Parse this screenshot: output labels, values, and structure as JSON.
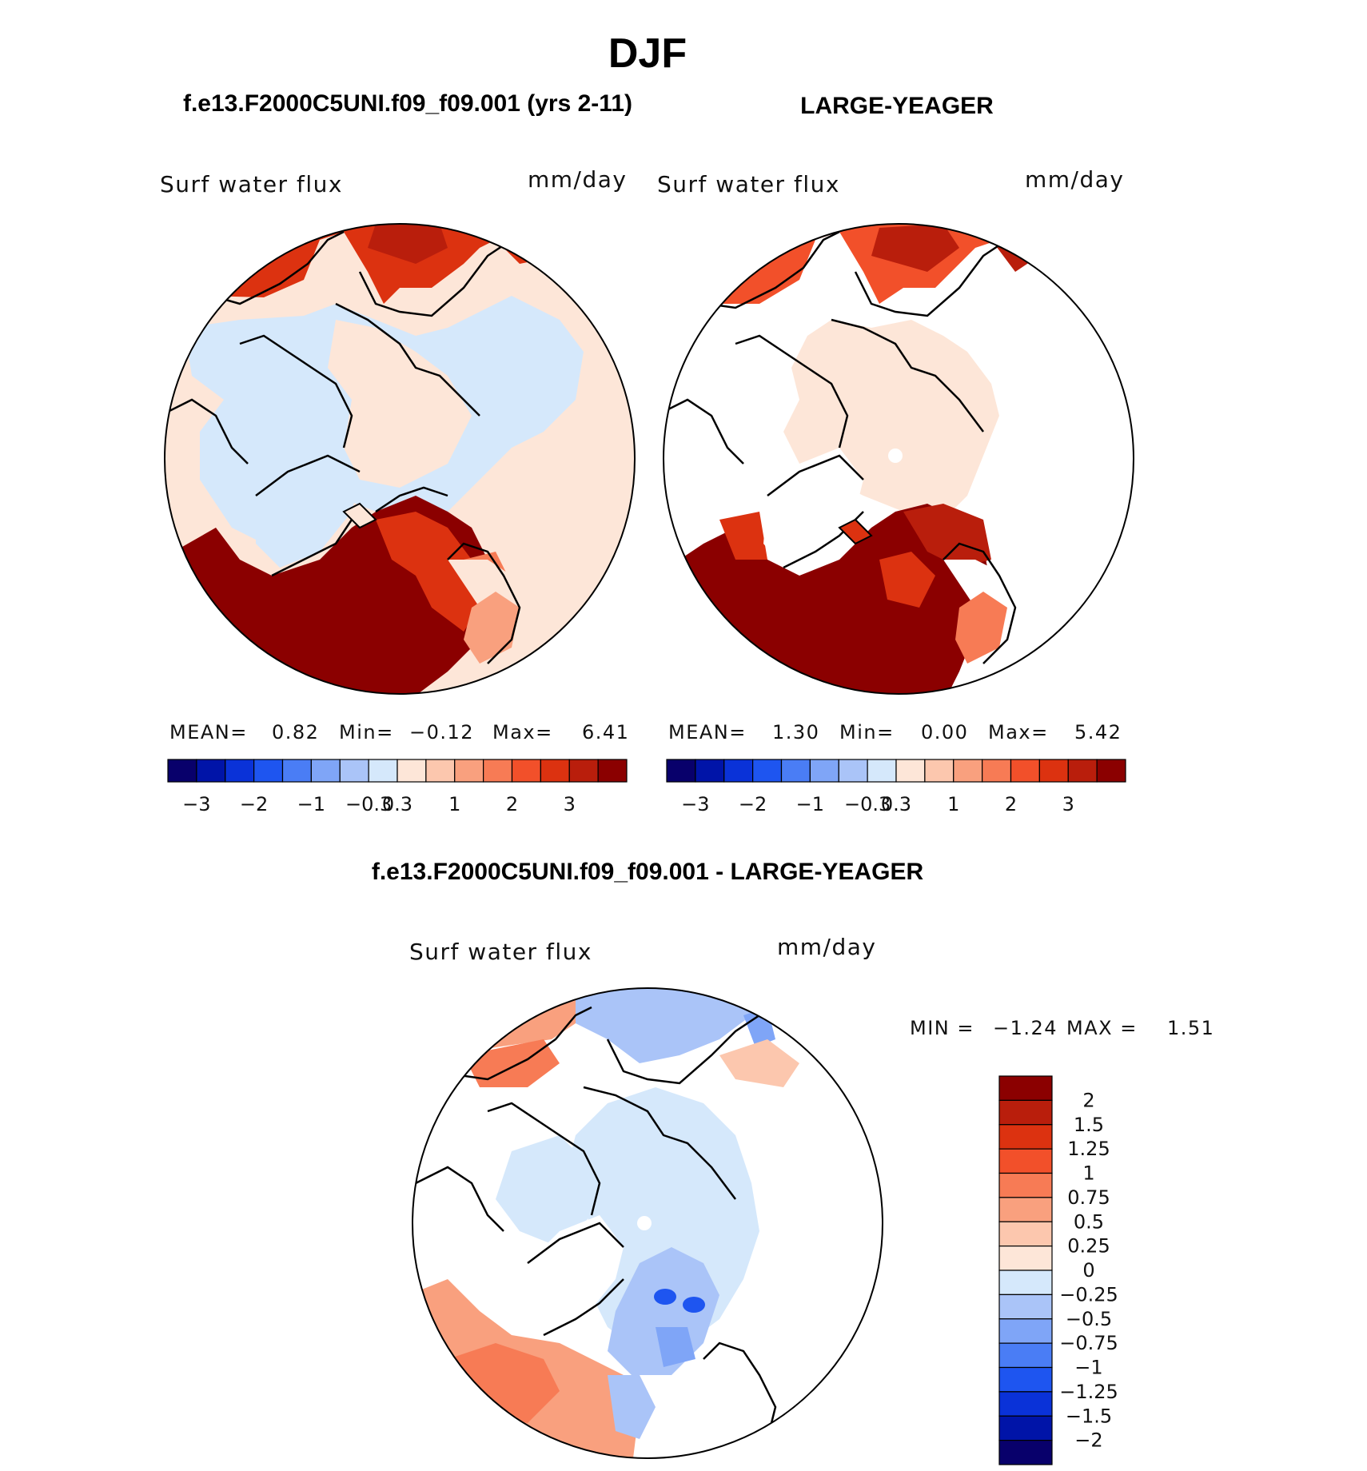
{
  "page": {
    "season_title": "DJF",
    "left_header": "f.e13.F2000C5UNI.f09_f09.001 (yrs 2-11)",
    "right_header": "LARGE-YEAGER",
    "diff_header": "f.e13.F2000C5UNI.f09_f09.001 - LARGE-YEAGER"
  },
  "colors": {
    "abs_scale": [
      "#08006b",
      "#0014a8",
      "#0a32d8",
      "#1e55f0",
      "#4a7df5",
      "#7fa5f7",
      "#aac4f8",
      "#d5e8fb",
      "#fde6d8",
      "#fcc7ae",
      "#f9a07e",
      "#f77b55",
      "#f2502a",
      "#dc3210",
      "#b91e0c",
      "#8b0000"
    ],
    "diff_scale": [
      "#8b0000",
      "#b91e0c",
      "#dc3210",
      "#f2502a",
      "#f77b55",
      "#f9a07e",
      "#fcc7ae",
      "#fde6d8",
      "#d5e8fb",
      "#aac4f8",
      "#7fa5f7",
      "#4a7df5",
      "#1e55f0",
      "#0a32d8",
      "#0014a8",
      "#08006b"
    ]
  },
  "chart_data": [
    {
      "type": "heatmap",
      "projection": "north-polar-stereographic",
      "field": "Surf water flux",
      "units": "mm/day",
      "case": "f.e13.F2000C5UNI.f09_f09.001 (yrs 2-11)",
      "stats": {
        "mean_label": "MEAN=",
        "mean": "0.82",
        "min_label": "Min=",
        "min": "−0.12",
        "max_label": "Max=",
        "max": "6.41"
      },
      "colorbar_ticks": [
        "−3",
        "−2",
        "−1",
        "−0.3",
        "0.3",
        "1",
        "2",
        "3"
      ]
    },
    {
      "type": "heatmap",
      "projection": "north-polar-stereographic",
      "field": "Surf water flux",
      "units": "mm/day",
      "case": "LARGE-YEAGER",
      "stats": {
        "mean_label": "MEAN=",
        "mean": "1.30",
        "min_label": "Min=",
        "min": "0.00",
        "max_label": "Max=",
        "max": "5.42"
      },
      "colorbar_ticks": [
        "−3",
        "−2",
        "−1",
        "−0.3",
        "0.3",
        "1",
        "2",
        "3"
      ]
    },
    {
      "type": "heatmap",
      "projection": "north-polar-stereographic",
      "field": "Surf water flux",
      "units": "mm/day",
      "case": "f.e13.F2000C5UNI.f09_f09.001 - LARGE-YEAGER",
      "stats": {
        "min_label": "MIN =",
        "min": "−1.24",
        "max_label": "MAX =",
        "max": "1.51"
      },
      "colorbar_ticks": [
        "2",
        "1.5",
        "1.25",
        "1",
        "0.75",
        "0.5",
        "0.25",
        "0",
        "−0.25",
        "−0.5",
        "−0.75",
        "−1",
        "−1.25",
        "−1.5",
        "−2"
      ]
    }
  ]
}
